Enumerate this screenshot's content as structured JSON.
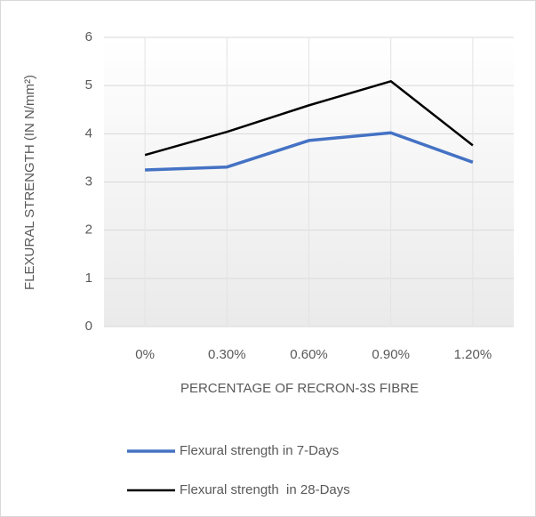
{
  "chart_data": {
    "type": "line",
    "categories": [
      "0%",
      "0.30%",
      "0.60%",
      "0.90%",
      "1.20%"
    ],
    "series": [
      {
        "name": "Flexural strength in 7-Days",
        "color": "#4472c4",
        "values": [
          3.25,
          3.31,
          3.86,
          4.02,
          3.41
        ]
      },
      {
        "name": "Flexural strength  in 28-Days",
        "color": "#000000",
        "values": [
          3.56,
          4.04,
          4.59,
          5.09,
          3.76
        ]
      }
    ],
    "x_label": "PERCENTAGE OF RECRON-3S FIBRE",
    "y_label": "FLEXURAL STRENGTH (IN N/mm²)",
    "ylim": [
      0,
      6
    ],
    "yticks": [
      0,
      1,
      2,
      3,
      4,
      5,
      6
    ],
    "grid": true,
    "legend": "bottom"
  }
}
